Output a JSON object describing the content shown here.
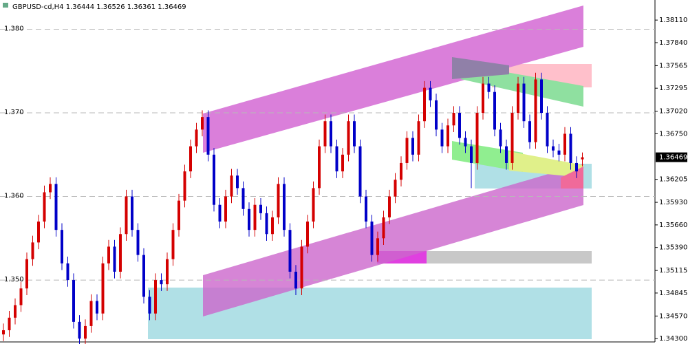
{
  "chart_data": {
    "type": "candlestick",
    "title": "GBPUSD-cd,H4  1.36444 1.36526 1.36361 1.36469",
    "open": [
      1.3435,
      1.344,
      1.3455,
      1.347,
      1.349,
      1.3525,
      1.3545,
      1.357,
      1.3605,
      1.3615,
      1.356,
      1.352,
      1.35,
      1.345,
      1.343,
      1.3445,
      1.3475,
      1.346,
      1.352,
      1.354,
      1.351,
      1.3555,
      1.36,
      1.356,
      1.353,
      1.348,
      1.346,
      1.35,
      1.3495,
      1.3525,
      1.356,
      1.3595,
      1.363,
      1.366,
      1.368,
      1.3695,
      1.365,
      1.359,
      1.357,
      1.36,
      1.3625,
      1.361,
      1.3585,
      1.356,
      1.359,
      1.358,
      1.3555,
      1.3575,
      1.3615,
      1.356,
      1.351,
      1.349,
      1.354,
      1.357,
      1.361,
      1.366,
      1.369,
      1.366,
      1.363,
      1.365,
      1.369,
      1.366,
      1.36,
      1.357,
      1.353,
      1.355,
      1.3575,
      1.36,
      1.362,
      1.364,
      1.367,
      1.365,
      1.369,
      1.373,
      1.3715,
      1.368,
      1.366,
      1.3685,
      1.37,
      1.367,
      1.366,
      1.364,
      1.37,
      1.3735,
      1.3725,
      1.368,
      1.366,
      1.364,
      1.37,
      1.3735,
      1.369,
      1.3665,
      1.374,
      1.37,
      1.366,
      1.3655,
      1.365,
      1.3675,
      1.364,
      1.36444
    ],
    "high": [
      1.3448,
      1.3463,
      1.3478,
      1.3498,
      1.3533,
      1.3553,
      1.3578,
      1.3613,
      1.3623,
      1.3623,
      1.3568,
      1.3528,
      1.3508,
      1.3458,
      1.3453,
      1.3483,
      1.3483,
      1.3528,
      1.3548,
      1.3548,
      1.3563,
      1.3608,
      1.3608,
      1.3568,
      1.3538,
      1.3488,
      1.3508,
      1.3508,
      1.3533,
      1.3568,
      1.3603,
      1.3638,
      1.3668,
      1.3688,
      1.3703,
      1.3703,
      1.3658,
      1.3598,
      1.3608,
      1.3633,
      1.3633,
      1.3618,
      1.3593,
      1.3598,
      1.3598,
      1.3588,
      1.3583,
      1.3623,
      1.3623,
      1.3568,
      1.3518,
      1.3548,
      1.3578,
      1.3618,
      1.3668,
      1.3698,
      1.3698,
      1.3668,
      1.3658,
      1.3698,
      1.3698,
      1.3668,
      1.3608,
      1.3578,
      1.3558,
      1.3583,
      1.3608,
      1.3628,
      1.3648,
      1.3678,
      1.3678,
      1.3698,
      1.3738,
      1.3738,
      1.3723,
      1.3688,
      1.3693,
      1.3708,
      1.3708,
      1.3678,
      1.3668,
      1.3708,
      1.3743,
      1.3743,
      1.3733,
      1.3688,
      1.3668,
      1.3708,
      1.3743,
      1.3743,
      1.3698,
      1.3748,
      1.3748,
      1.3708,
      1.3668,
      1.3663,
      1.3683,
      1.3683,
      1.3648,
      1.36526
    ],
    "low": [
      1.3427,
      1.3432,
      1.3447,
      1.3462,
      1.3482,
      1.3517,
      1.3537,
      1.3562,
      1.3597,
      1.3552,
      1.3512,
      1.3492,
      1.3442,
      1.3422,
      1.3422,
      1.3437,
      1.3452,
      1.3452,
      1.3512,
      1.3502,
      1.3502,
      1.3547,
      1.3552,
      1.3522,
      1.3472,
      1.3452,
      1.3452,
      1.3487,
      1.3487,
      1.3517,
      1.3552,
      1.3587,
      1.3622,
      1.3652,
      1.3672,
      1.3642,
      1.3582,
      1.3562,
      1.3562,
      1.3592,
      1.3602,
      1.3577,
      1.3552,
      1.3552,
      1.3572,
      1.3547,
      1.3547,
      1.3567,
      1.3552,
      1.3502,
      1.3482,
      1.3482,
      1.3532,
      1.3562,
      1.3602,
      1.3652,
      1.3652,
      1.3622,
      1.3622,
      1.3642,
      1.3652,
      1.3592,
      1.3562,
      1.3522,
      1.3522,
      1.3542,
      1.3567,
      1.3592,
      1.3612,
      1.3632,
      1.3642,
      1.3642,
      1.3682,
      1.3707,
      1.3672,
      1.3652,
      1.3652,
      1.3677,
      1.3662,
      1.3652,
      1.361,
      1.3632,
      1.3692,
      1.3717,
      1.3672,
      1.3652,
      1.3632,
      1.3632,
      1.3692,
      1.3682,
      1.3657,
      1.3657,
      1.3692,
      1.3652,
      1.3647,
      1.3642,
      1.3642,
      1.3632,
      1.3622,
      1.36361
    ],
    "close": [
      1.344,
      1.3455,
      1.347,
      1.349,
      1.3525,
      1.3545,
      1.357,
      1.3605,
      1.3615,
      1.356,
      1.352,
      1.35,
      1.345,
      1.343,
      1.3445,
      1.3475,
      1.346,
      1.352,
      1.354,
      1.351,
      1.3555,
      1.36,
      1.356,
      1.353,
      1.348,
      1.346,
      1.35,
      1.3495,
      1.3525,
      1.356,
      1.3595,
      1.363,
      1.366,
      1.368,
      1.3695,
      1.365,
      1.359,
      1.357,
      1.36,
      1.3625,
      1.361,
      1.3585,
      1.356,
      1.359,
      1.358,
      1.3555,
      1.3575,
      1.3615,
      1.356,
      1.351,
      1.349,
      1.354,
      1.357,
      1.361,
      1.366,
      1.369,
      1.366,
      1.363,
      1.365,
      1.369,
      1.366,
      1.36,
      1.357,
      1.353,
      1.355,
      1.3575,
      1.36,
      1.362,
      1.364,
      1.367,
      1.365,
      1.369,
      1.373,
      1.3715,
      1.368,
      1.366,
      1.3685,
      1.37,
      1.367,
      1.366,
      1.364,
      1.37,
      1.3735,
      1.3725,
      1.368,
      1.366,
      1.364,
      1.37,
      1.3735,
      1.369,
      1.3665,
      1.374,
      1.37,
      1.366,
      1.3655,
      1.365,
      1.3675,
      1.364,
      1.363,
      1.36469
    ],
    "up_color": "#d40000",
    "down_color": "#0000c8",
    "ylim": [
      1.3426,
      1.3835
    ],
    "yticks": [
      {
        "value": 1.35,
        "label": "1.350"
      },
      {
        "value": 1.36,
        "label": "1.360"
      },
      {
        "value": 1.37,
        "label": "1.370"
      },
      {
        "value": 1.38,
        "label": "1.380"
      }
    ],
    "grid": true,
    "y2lim": [
      1.3426,
      1.3835
    ],
    "y2ticks": [
      {
        "value": 1.3811,
        "label": "1.38110"
      },
      {
        "value": 1.3784,
        "label": "1.37840"
      },
      {
        "value": 1.37565,
        "label": "1.37565"
      },
      {
        "value": 1.37295,
        "label": "1.37295"
      },
      {
        "value": 1.3702,
        "label": "1.37020"
      },
      {
        "value": 1.3675,
        "label": "1.36750"
      },
      {
        "value": 1.36205,
        "label": "1.36205"
      },
      {
        "value": 1.3593,
        "label": "1.35930"
      },
      {
        "value": 1.3566,
        "label": "1.35660"
      },
      {
        "value": 1.3539,
        "label": "1.35390"
      },
      {
        "value": 1.35115,
        "label": "1.35115"
      },
      {
        "value": 1.34845,
        "label": "1.34845"
      },
      {
        "value": 1.3457,
        "label": "1.34570"
      },
      {
        "value": 1.343,
        "label": "1.34300"
      }
    ],
    "last_price": {
      "value": 1.36469,
      "label": "1.36469"
    }
  }
}
